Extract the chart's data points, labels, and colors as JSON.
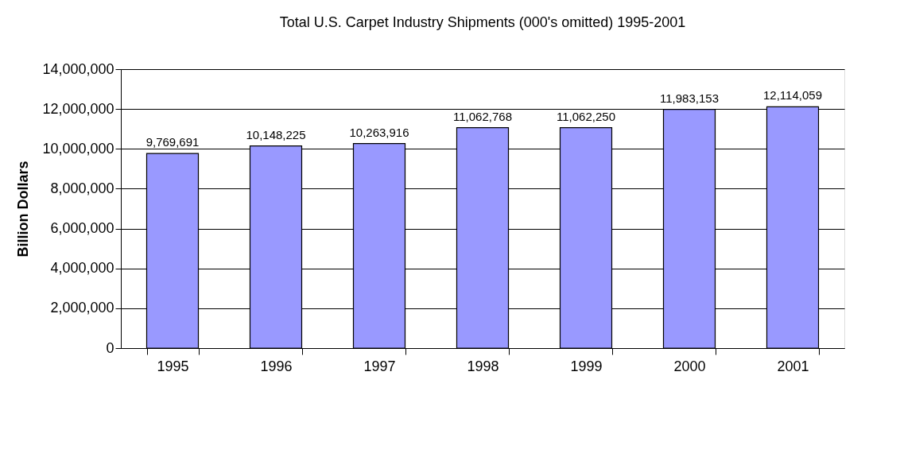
{
  "chart_data": {
    "type": "bar",
    "title": "Total U.S. Carpet Industry Shipments (000's omitted) 1995-2001",
    "ylabel": "Billion Dollars",
    "categories": [
      "1995",
      "1996",
      "1997",
      "1998",
      "1999",
      "2000",
      "2001"
    ],
    "values": [
      9769691,
      10148225,
      10263916,
      11062768,
      11062250,
      11983153,
      12114059
    ],
    "value_labels": [
      "9,769,691",
      "10,148,225",
      "10,263,916",
      "11,062,768",
      "11,062,250",
      "11,983,153",
      "12,114,059"
    ],
    "color": "#9999ff",
    "ylim": [
      0,
      14000000
    ],
    "yticks": [
      0,
      {
        "value": 2000000,
        "label": "2,000,000"
      },
      {
        "value": 4000000,
        "label": "4,000,000"
      },
      {
        "value": 6000000,
        "label": "6,000,000"
      },
      {
        "value": 8000000,
        "label": "8,000,000"
      },
      {
        "value": 10000000,
        "label": "10,000,000"
      },
      {
        "value": 12000000,
        "label": "12,000,000"
      },
      {
        "value": 14000000,
        "label": "14,000,000"
      }
    ],
    "grid": "y"
  }
}
